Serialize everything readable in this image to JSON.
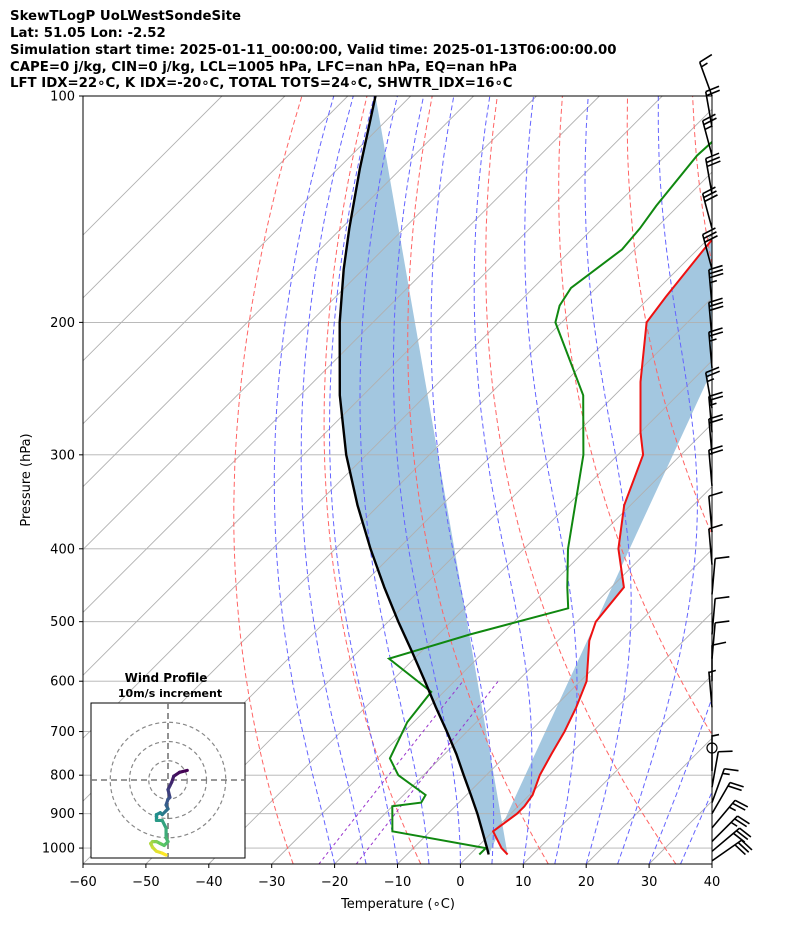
{
  "header": {
    "line1": "SkewTLogP UoLWestSondeSite",
    "line2": "Lat: 51.05   Lon: -2.52",
    "line3": "Simulation start time: 2025-01-11_00:00:00, Valid time: 2025-01-13T06:00:00.00",
    "line4": "CAPE=0 j/kg, CIN=0 j/kg, LCL=1005 hPa, LFC=nan hPa, EQ=nan hPa",
    "line5": "LFT IDX=22∘C, K IDX=-20∘C, TOTAL TOTS=24∘C, SHWTR_IDX=16∘C"
  },
  "chart_data": [
    {
      "type": "line",
      "title": "",
      "xlabel": "Temperature (∘C)",
      "ylabel": "Pressure (hPa)",
      "xlim": [
        -60,
        40
      ],
      "ylim": [
        1050,
        100
      ],
      "y_scale": "log",
      "skew": 45,
      "grid": true,
      "xticks": [
        -60,
        -50,
        -40,
        -30,
        -20,
        -10,
        0,
        10,
        20,
        30,
        40
      ],
      "yticks": [
        100,
        200,
        300,
        400,
        500,
        600,
        700,
        800,
        900,
        1000
      ],
      "series": [
        {
          "color": "#ee1111",
          "pressure": [
            100,
            120,
            140,
            150,
            160,
            185,
            200,
            240,
            280,
            300,
            350,
            400,
            450,
            500,
            530,
            600,
            650,
            700,
            750,
            800,
            850,
            880,
            900,
            950,
            1000,
            1020
          ],
          "temperature": [
            -62,
            -61.5,
            -60,
            -59.5,
            -59,
            -57.5,
            -56.5,
            -48,
            -40,
            -36,
            -31,
            -25,
            -18,
            -17,
            -15,
            -9,
            -6.5,
            -4.5,
            -3,
            -1.5,
            0.5,
            1,
            1,
            0,
            4,
            6
          ]
        },
        {
          "color": "#108810",
          "pressure": [
            100,
            120,
            140,
            150,
            160,
            180,
            190,
            200,
            250,
            300,
            400,
            450,
            480,
            520,
            560,
            620,
            680,
            760,
            800,
            850,
            870,
            880,
            950,
            1000,
            1020
          ],
          "temperature": [
            -74,
            -75,
            -73.5,
            -72.5,
            -72,
            -74,
            -73,
            -71,
            -55,
            -45.5,
            -33,
            -27,
            -23.5,
            -35,
            -44,
            -32,
            -31,
            -28,
            -24,
            -16.5,
            -16,
            -20,
            -16,
            1.5,
            1.5
          ]
        },
        {
          "color": "#000000",
          "pressure": [
            1020,
            1000,
            950,
            900,
            850,
            800,
            750,
            700,
            650,
            600,
            550,
            500,
            450,
            400,
            350,
            300,
            250,
            200,
            170,
            150,
            125,
            100
          ],
          "temperature": [
            3,
            1.7,
            -1.7,
            -5.3,
            -9.3,
            -13.6,
            -18.1,
            -23.2,
            -28.8,
            -34.7,
            -41.2,
            -48.4,
            -56.1,
            -64.4,
            -73.4,
            -83.2,
            -93.7,
            -105.3,
            -113.1,
            -118.7,
            -126.5,
            -135.6
          ]
        }
      ],
      "cape_fill": "#a3c7e0",
      "dry_adiabats_color": "#ff6464",
      "moist_adiabats_color": "#6464ff",
      "mixing_ratio_color": "#9933cc",
      "wind_barbs": {
        "pressure": [
          100,
          110,
          120,
          135,
          150,
          170,
          190,
          210,
          230,
          260,
          280,
          300,
          330,
          380,
          420,
          460,
          520,
          560,
          600,
          650,
          700,
          730,
          760,
          790,
          830,
          870,
          900,
          940,
          980,
          1010,
          1040
        ],
        "direction_deg": [
          340,
          350,
          345,
          350,
          345,
          345,
          355,
          355,
          355,
          350,
          355,
          355,
          355,
          355,
          355,
          5,
          5,
          5,
          0,
          355,
          0,
          0,
          0,
          0,
          10,
          20,
          30,
          40,
          45,
          50,
          55
        ],
        "speed_kt": [
          15,
          20,
          25,
          30,
          30,
          30,
          35,
          30,
          25,
          25,
          25,
          20,
          20,
          10,
          10,
          10,
          10,
          10,
          10,
          5,
          0,
          0,
          0,
          5,
          10,
          15,
          20,
          25,
          25,
          30,
          30
        ],
        "color": "#000000"
      }
    },
    {
      "type": "line",
      "title": "Wind Profile",
      "subtitle": "10m/s increment",
      "xlim": [
        -40,
        40
      ],
      "ylim": [
        -40,
        40
      ],
      "ring_step": 10,
      "rings": [
        10,
        20,
        30
      ],
      "series": [
        {
          "colormap": [
            "#440154",
            "#3b528b",
            "#21918c",
            "#5ec962",
            "#fde725"
          ],
          "u": [
            10,
            6,
            3,
            2,
            1,
            0,
            1,
            0,
            -1,
            0,
            -1,
            -3,
            -4,
            -6,
            -6,
            -3,
            -1,
            -1,
            0,
            -2,
            -4,
            -6,
            -8,
            -9,
            -8,
            -6,
            -3,
            -1
          ],
          "v": [
            5,
            4,
            2,
            -1,
            -3,
            -5,
            -9,
            -10,
            -13,
            -15,
            -16,
            -18,
            -17,
            -18,
            -21,
            -21,
            -25,
            -30,
            -32,
            -34,
            -33,
            -32,
            -32,
            -33,
            -35,
            -37,
            -38,
            -39
          ]
        }
      ]
    }
  ]
}
